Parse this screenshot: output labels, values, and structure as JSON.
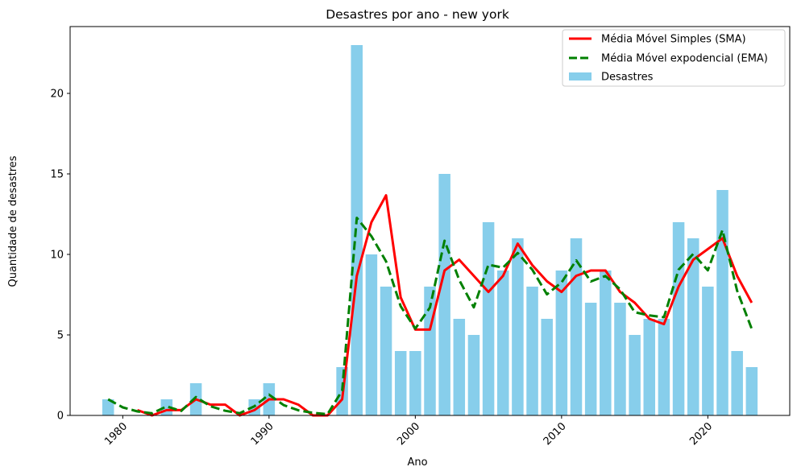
{
  "chart_data": {
    "type": "bar",
    "title": "Desastres por ano - new york",
    "xlabel": "Ano",
    "ylabel": "Quantidade de desastres",
    "xlim": [
      1976.4,
      2025.6
    ],
    "ylim": [
      0,
      24.15
    ],
    "x_ticks": [
      1980,
      1990,
      2000,
      2010,
      2020
    ],
    "y_ticks": [
      0,
      5,
      10,
      15,
      20
    ],
    "x_tick_rotation": 45,
    "grid": false,
    "legend_position": "top-right",
    "x": [
      1979,
      1980,
      1981,
      1982,
      1983,
      1984,
      1985,
      1986,
      1987,
      1988,
      1989,
      1990,
      1991,
      1992,
      1993,
      1994,
      1995,
      1996,
      1997,
      1998,
      1999,
      2000,
      2001,
      2002,
      2003,
      2004,
      2005,
      2006,
      2007,
      2008,
      2009,
      2010,
      2011,
      2012,
      2013,
      2014,
      2015,
      2016,
      2017,
      2018,
      2019,
      2020,
      2021,
      2022,
      2023
    ],
    "series": [
      {
        "name": "Desastres",
        "type": "bar",
        "color": "#87ceeb",
        "values": [
          1,
          0,
          0,
          0,
          1,
          0,
          2,
          0,
          0,
          0,
          1,
          2,
          0,
          0,
          0,
          0,
          3,
          23,
          10,
          8,
          4,
          4,
          8,
          15,
          6,
          5,
          12,
          9,
          11,
          8,
          6,
          9,
          11,
          7,
          9,
          7,
          5,
          6,
          6,
          12,
          11,
          8,
          14,
          4,
          3
        ]
      },
      {
        "name": "Média Móvel Simples (SMA)",
        "type": "line",
        "color": "#ff0000",
        "style": "solid",
        "values": [
          null,
          null,
          0.33,
          0.0,
          0.33,
          0.33,
          1.0,
          0.67,
          0.67,
          0.0,
          0.33,
          1.0,
          1.0,
          0.67,
          0.0,
          0.0,
          1.0,
          8.67,
          12.0,
          13.67,
          7.33,
          5.33,
          5.33,
          9.0,
          9.67,
          8.67,
          7.67,
          8.67,
          10.67,
          9.33,
          8.33,
          7.67,
          8.67,
          9.0,
          9.0,
          7.67,
          7.0,
          6.0,
          5.67,
          8.0,
          9.67,
          10.33,
          11.0,
          8.67,
          7.0
        ]
      },
      {
        "name": "Média Móvel expodencial (EMA)",
        "type": "line",
        "color": "#008000",
        "style": "dashed",
        "values": [
          1.0,
          0.5,
          0.25,
          0.13,
          0.56,
          0.28,
          1.14,
          0.57,
          0.29,
          0.14,
          0.57,
          1.29,
          0.64,
          0.32,
          0.16,
          0.08,
          1.54,
          12.27,
          11.13,
          9.57,
          6.78,
          5.39,
          6.7,
          10.85,
          8.42,
          6.71,
          9.36,
          9.18,
          10.09,
          9.05,
          7.52,
          8.26,
          9.63,
          8.32,
          8.66,
          7.83,
          6.41,
          6.21,
          6.1,
          9.05,
          10.03,
          9.01,
          11.51,
          7.75,
          5.38
        ]
      }
    ]
  }
}
